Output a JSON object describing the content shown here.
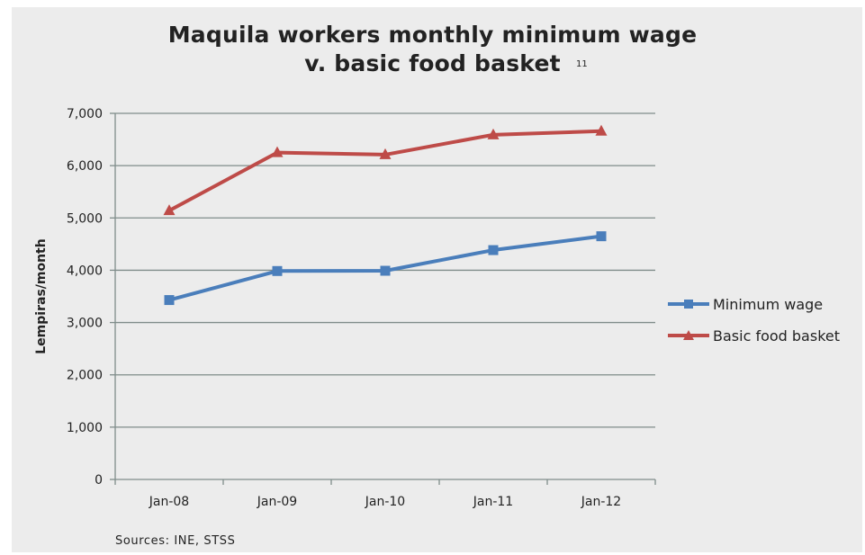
{
  "colors": {
    "background": "#ececec",
    "gridline": "#7f8c8a",
    "axis": "#7f8c8a",
    "minimum_wage": "#4a7ebb",
    "basic_food_basket": "#be4b48"
  },
  "chart_data": {
    "type": "line",
    "title_line1": "Maquila workers monthly minimum wage",
    "title_line2": "v. basic food basket",
    "title_ref": "11",
    "ylabel": "Lempiras/month",
    "xlabel": "",
    "categories": [
      "Jan-08",
      "Jan-09",
      "Jan-10",
      "Jan-11",
      "Jan-12"
    ],
    "yticks": [
      "0",
      "1,000",
      "2,000",
      "3,000",
      "4,000",
      "5,000",
      "6,000",
      "7,000"
    ],
    "ylim": [
      0,
      7000
    ],
    "grid": true,
    "legend_position": "right",
    "series": [
      {
        "name": "Minimum wage",
        "marker": "square",
        "values": [
          3430,
          3985,
          3990,
          4385,
          4650
        ]
      },
      {
        "name": "Basic food basket",
        "marker": "triangle",
        "values": [
          5140,
          6250,
          6210,
          6590,
          6660
        ]
      }
    ],
    "source": "Sources: INE, STSS"
  }
}
